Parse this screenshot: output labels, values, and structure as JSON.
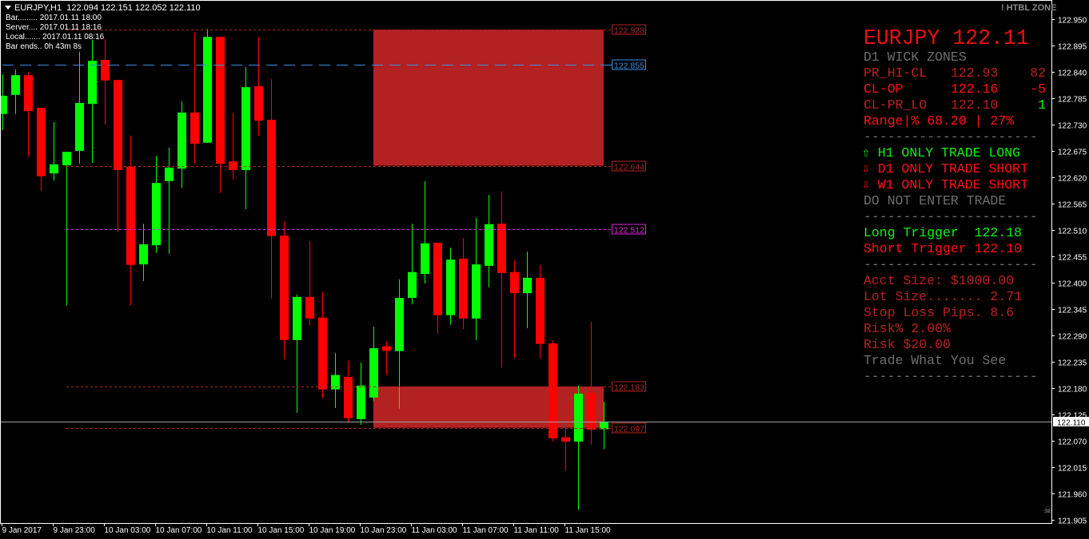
{
  "header": {
    "symbol_tf": "EURJPY,H1",
    "ohlc": "122.094 122.151 122.052 122.110"
  },
  "bar_info": {
    "bar": "Bar......... 2017.01.11 18:00",
    "server": "Server.... 2017.01.11 18:16",
    "local": "Local....... 2017.01.11 08:16",
    "bar_ends": "Bar ends.. 0h 43m 8s"
  },
  "indicator_name": "! HTBL ZONE",
  "panel": {
    "title": "EURJPY 122.11",
    "wick_zones_heading": "D1 WICK ZONES",
    "rows": [
      {
        "label": "PR_HI-CL",
        "price": "122.93",
        "value": "82"
      },
      {
        "label": "CL-OP",
        "price": "122.16",
        "value": "-5"
      },
      {
        "label": "CL-PR_LO",
        "price": "122.10",
        "value": "1"
      }
    ],
    "range": "Range|% 68.20 | 27%",
    "divider": "----------------------",
    "h1": "H1 ONLY TRADE LONG",
    "d1": "D1 ONLY TRADE SHORT",
    "w1": "W1 ONLY TRADE SHORT",
    "advice": "DO NOT ENTER TRADE",
    "long_trigger": "Long Trigger  122.18",
    "short_trigger": "Short Trigger 122.10",
    "acct_size": "Acct Size: $1000.00",
    "lot_size": "Lot Size....... 2.71",
    "stop_loss": "Stop Loss Pips. 8.6",
    "risk_pct": "Risk% 2.00%",
    "risk_amt": "Risk $20.00",
    "motto": "Trade What You See",
    "up_arrow": "⇧",
    "down_arrow": "⇩"
  },
  "colors": {
    "bull": "#00ff00",
    "bear": "#ff0000",
    "zone": "#b22222",
    "background": "#000000"
  },
  "chart_data": {
    "type": "candlestick",
    "symbol": "EURJPY",
    "timeframe": "H1",
    "ylim": [
      121.898,
      122.99
    ],
    "grid": false,
    "ohlc": [
      [
        122.752,
        122.835,
        122.718,
        122.79
      ],
      [
        122.792,
        122.845,
        122.752,
        122.833
      ],
      [
        122.833,
        122.84,
        122.663,
        122.758
      ],
      [
        122.765,
        122.765,
        122.592,
        122.622
      ],
      [
        122.628,
        122.735,
        122.613,
        122.647
      ],
      [
        122.645,
        122.673,
        122.352,
        122.673
      ],
      [
        122.675,
        122.882,
        122.648,
        122.775
      ],
      [
        122.773,
        122.907,
        122.65,
        122.863
      ],
      [
        122.865,
        122.908,
        122.73,
        122.822
      ],
      [
        122.823,
        122.823,
        122.505,
        122.635
      ],
      [
        122.642,
        122.707,
        122.352,
        122.437
      ],
      [
        122.438,
        122.523,
        122.403,
        122.48
      ],
      [
        122.478,
        122.665,
        122.462,
        122.608
      ],
      [
        122.612,
        122.682,
        122.46,
        122.64
      ],
      [
        122.638,
        122.778,
        122.597,
        122.755
      ],
      [
        122.755,
        122.922,
        122.648,
        122.69
      ],
      [
        122.692,
        122.93,
        122.692,
        122.913
      ],
      [
        122.913,
        122.913,
        122.587,
        122.648
      ],
      [
        122.653,
        122.755,
        122.615,
        122.635
      ],
      [
        122.635,
        122.85,
        122.553,
        122.808
      ],
      [
        122.81,
        122.912,
        122.707,
        122.738
      ],
      [
        122.74,
        122.825,
        122.367,
        122.497
      ],
      [
        122.498,
        122.527,
        122.24,
        122.28
      ],
      [
        122.28,
        122.375,
        122.128,
        122.37
      ],
      [
        122.37,
        122.487,
        122.31,
        122.325
      ],
      [
        122.327,
        122.38,
        122.158,
        122.177
      ],
      [
        122.177,
        122.253,
        122.138,
        122.207
      ],
      [
        122.203,
        122.237,
        122.107,
        122.117
      ],
      [
        122.115,
        122.233,
        122.103,
        122.185
      ],
      [
        122.16,
        122.308,
        122.152,
        122.263
      ],
      [
        122.267,
        122.278,
        122.207,
        122.258
      ],
      [
        122.257,
        122.407,
        122.137,
        122.368
      ],
      [
        122.368,
        122.523,
        122.355,
        122.422
      ],
      [
        122.418,
        122.612,
        122.398,
        122.482
      ],
      [
        122.483,
        122.483,
        122.293,
        122.332
      ],
      [
        122.332,
        122.473,
        122.312,
        122.448
      ],
      [
        122.45,
        122.493,
        122.303,
        122.325
      ],
      [
        122.325,
        122.535,
        122.28,
        122.438
      ],
      [
        122.435,
        122.583,
        122.39,
        122.522
      ],
      [
        122.523,
        122.59,
        122.223,
        122.42
      ],
      [
        122.422,
        122.447,
        122.243,
        122.378
      ],
      [
        122.378,
        122.465,
        122.305,
        122.41
      ],
      [
        122.41,
        122.437,
        122.242,
        122.272
      ],
      [
        122.273,
        122.28,
        122.068,
        122.075
      ],
      [
        122.077,
        122.145,
        122.007,
        122.068
      ],
      [
        122.068,
        122.185,
        121.925,
        122.168
      ],
      [
        122.17,
        122.318,
        122.062,
        122.093
      ],
      [
        122.094,
        122.151,
        122.052,
        122.11
      ]
    ],
    "y_ticks": [
      "122.950",
      "122.895",
      "122.840",
      "122.785",
      "122.730",
      "122.675",
      "122.620",
      "122.565",
      "122.510",
      "122.455",
      "122.400",
      "122.345",
      "122.290",
      "122.235",
      "122.180",
      "122.125",
      "122.070",
      "122.015",
      "121.960",
      "121.905"
    ],
    "x_ticks": [
      "9 Jan 2017",
      "9 Jan 23:00",
      "10 Jan 03:00",
      "10 Jan 07:00",
      "10 Jan 11:00",
      "10 Jan 15:00",
      "10 Jan 19:00",
      "10 Jan 23:00",
      "11 Jan 03:00",
      "11 Jan 07:00",
      "11 Jan 11:00",
      "11 Jan 15:00"
    ],
    "x_tick_every_bars": 4,
    "bid": "122.110",
    "zones": [
      {
        "top": 122.928,
        "bottom": 122.644,
        "from_bar": 29,
        "to_bar": 47
      },
      {
        "top": 122.183,
        "bottom": 122.097,
        "from_bar": 29,
        "to_bar": 47
      }
    ],
    "levels": [
      {
        "price": "122.928",
        "color": "#b22222",
        "style": "dotted",
        "from_bar": 5
      },
      {
        "price": "122.855",
        "color": "#3a8ee6",
        "style": "longdash",
        "from_bar": 0
      },
      {
        "price": "122.644",
        "color": "#b22222",
        "style": "dotted",
        "from_bar": 5
      },
      {
        "price": "122.512",
        "color": "#e020e0",
        "style": "dotted",
        "from_bar": 5
      },
      {
        "price": "122.183",
        "color": "#b22222",
        "style": "dotted",
        "from_bar": 5
      },
      {
        "price": "122.097",
        "color": "#b22222",
        "style": "dotted",
        "from_bar": 5
      }
    ]
  }
}
